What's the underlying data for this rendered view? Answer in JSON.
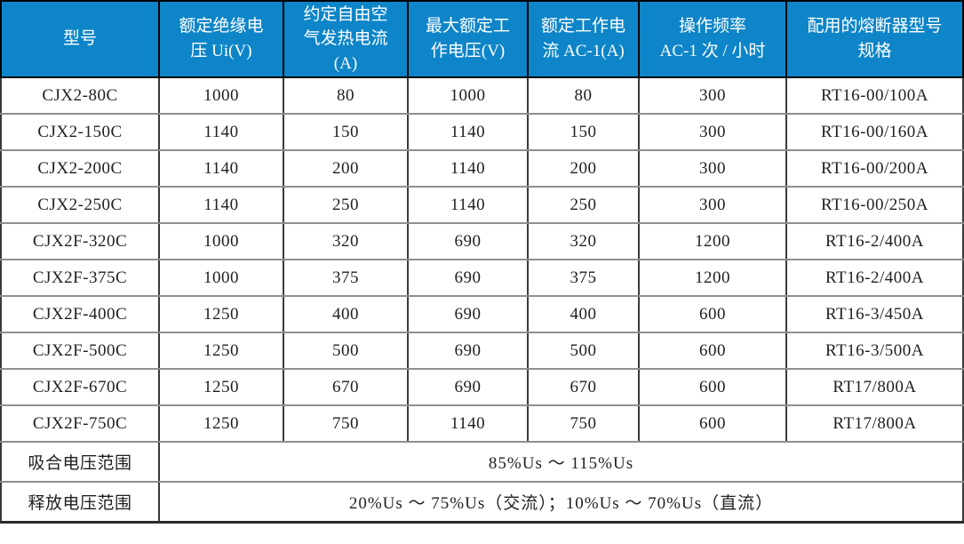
{
  "colors": {
    "header_bg": "#0e85c8",
    "header_text": "#ffffff",
    "header_border": "#000000",
    "grid_h": "#8f8f8f",
    "grid_v": "#3a3a3a",
    "outer_border": "#2b2b2b",
    "body_text": "#1f1f1f",
    "row_bg": "#ffffff"
  },
  "table": {
    "columns": [
      {
        "label": "型号"
      },
      {
        "label": "额定绝缘电\n压 Ui(V)"
      },
      {
        "label": "约定自由空\n气发热电流\n(A)"
      },
      {
        "label": "最大额定工\n作电压(V)"
      },
      {
        "label": "额定工作电\n流 AC-1(A)"
      },
      {
        "label": "操作频率\nAC-1 次 / 小时"
      },
      {
        "label": "配用的熔断器型号\n规格"
      }
    ],
    "rows": [
      {
        "cells": [
          "CJX2-80C",
          "1000",
          "80",
          "1000",
          "80",
          "300",
          "RT16-00/100A"
        ]
      },
      {
        "cells": [
          "CJX2-150C",
          "1140",
          "150",
          "1140",
          "150",
          "300",
          "RT16-00/160A"
        ]
      },
      {
        "cells": [
          "CJX2-200C",
          "1140",
          "200",
          "1140",
          "200",
          "300",
          "RT16-00/200A"
        ]
      },
      {
        "cells": [
          "CJX2-250C",
          "1140",
          "250",
          "1140",
          "250",
          "300",
          "RT16-00/250A"
        ]
      },
      {
        "cells": [
          "CJX2F-320C",
          "1000",
          "320",
          "690",
          "320",
          "1200",
          "RT16-2/400A"
        ]
      },
      {
        "cells": [
          "CJX2F-375C",
          "1000",
          "375",
          "690",
          "375",
          "1200",
          "RT16-2/400A"
        ]
      },
      {
        "cells": [
          "CJX2F-400C",
          "1250",
          "400",
          "690",
          "400",
          "600",
          "RT16-3/450A"
        ]
      },
      {
        "cells": [
          "CJX2F-500C",
          "1250",
          "500",
          "690",
          "500",
          "600",
          "RT16-3/500A"
        ]
      },
      {
        "cells": [
          "CJX2F-670C",
          "1250",
          "670",
          "690",
          "670",
          "600",
          "RT17/800A"
        ]
      },
      {
        "cells": [
          "CJX2F-750C",
          "1250",
          "750",
          "1140",
          "750",
          "600",
          "RT17/800A"
        ]
      }
    ],
    "footer_rows": [
      {
        "label": "吸合电压范围",
        "value": "85%Us ～ 115%Us"
      },
      {
        "label": "释放电压范围",
        "value": "20%Us ～ 75%Us（交流）；10%Us ～ 70%Us（直流）"
      }
    ]
  }
}
